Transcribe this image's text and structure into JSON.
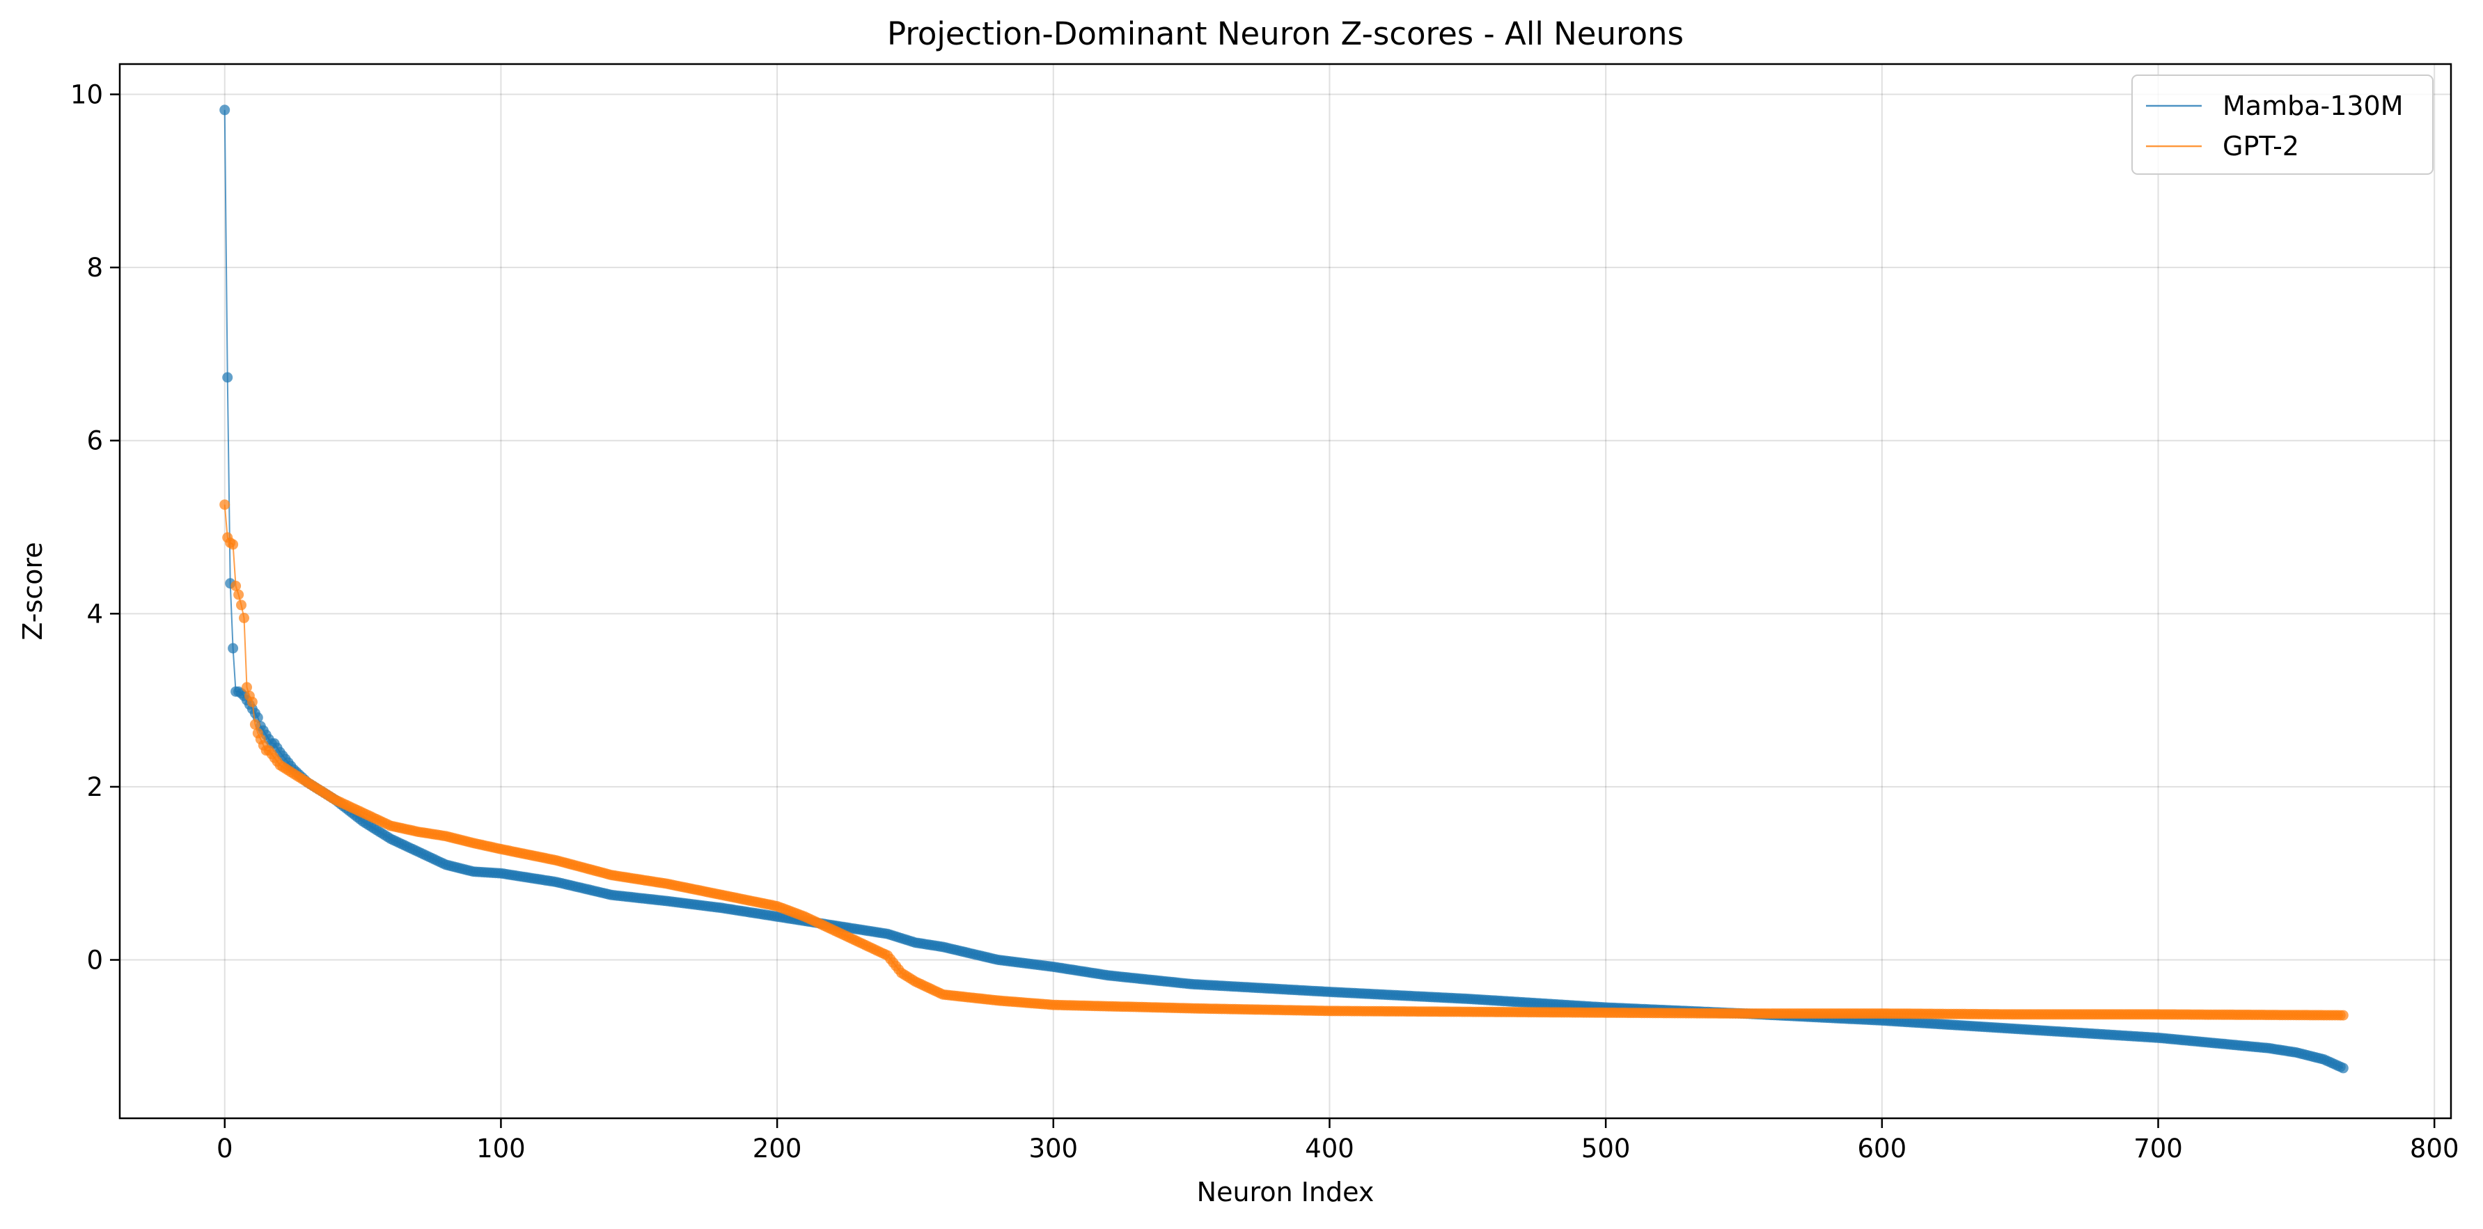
{
  "chart_data": {
    "type": "line",
    "title": "Projection-Dominant Neuron Z-scores - All Neurons",
    "xlabel": "Neuron Index",
    "ylabel": "Z-score",
    "xlim": [
      -38,
      806
    ],
    "ylim": [
      -1.83,
      10.35
    ],
    "xticks": [
      0,
      100,
      200,
      300,
      400,
      500,
      600,
      700,
      800
    ],
    "yticks": [
      0,
      2,
      4,
      6,
      8,
      10
    ],
    "grid": true,
    "legend_position": "top-right",
    "markers": true,
    "series": [
      {
        "name": "Mamba-130M",
        "color": "#1f77b4",
        "head": [
          9.82,
          6.73,
          4.35,
          3.6,
          3.1,
          3.1,
          3.08,
          3.05,
          3.0,
          2.95,
          2.9,
          2.85,
          2.8,
          2.7,
          2.65,
          2.6,
          2.55,
          2.5
        ],
        "x": [
          18,
          20,
          25,
          30,
          40,
          50,
          60,
          70,
          80,
          90,
          100,
          120,
          140,
          160,
          180,
          200,
          220,
          240,
          250,
          260,
          280,
          300,
          320,
          350,
          400,
          450,
          500,
          550,
          600,
          650,
          700,
          740,
          750,
          760,
          767
        ],
        "values": [
          2.5,
          2.4,
          2.2,
          2.05,
          1.85,
          1.6,
          1.4,
          1.25,
          1.1,
          1.02,
          1.0,
          0.9,
          0.75,
          0.68,
          0.6,
          0.5,
          0.4,
          0.3,
          0.2,
          0.15,
          0.0,
          -0.08,
          -0.18,
          -0.28,
          -0.37,
          -0.45,
          -0.55,
          -0.62,
          -0.7,
          -0.8,
          -0.9,
          -1.02,
          -1.07,
          -1.15,
          -1.25
        ]
      },
      {
        "name": "GPT-2",
        "color": "#ff7f0e",
        "head": [
          5.26,
          4.88,
          4.82,
          4.8,
          4.32,
          4.22,
          4.1,
          3.95,
          3.15,
          3.05,
          2.98,
          2.72,
          2.62,
          2.55,
          2.48,
          2.42
        ],
        "x": [
          16,
          20,
          25,
          30,
          40,
          50,
          60,
          70,
          80,
          90,
          100,
          120,
          140,
          160,
          180,
          200,
          210,
          220,
          230,
          240,
          245,
          250,
          260,
          280,
          300,
          350,
          400,
          450,
          500,
          550,
          600,
          650,
          700,
          767
        ],
        "values": [
          2.42,
          2.25,
          2.15,
          2.05,
          1.85,
          1.7,
          1.55,
          1.48,
          1.43,
          1.35,
          1.28,
          1.15,
          0.98,
          0.88,
          0.75,
          0.62,
          0.5,
          0.35,
          0.2,
          0.05,
          -0.15,
          -0.25,
          -0.4,
          -0.47,
          -0.52,
          -0.56,
          -0.59,
          -0.6,
          -0.61,
          -0.62,
          -0.62,
          -0.63,
          -0.63,
          -0.64
        ]
      }
    ]
  }
}
